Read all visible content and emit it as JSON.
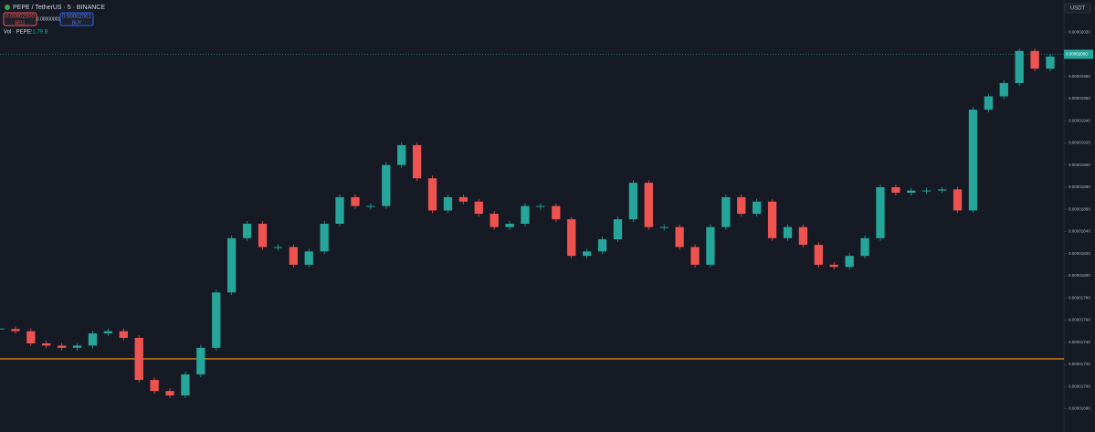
{
  "chart_data": {
    "type": "candlestick",
    "title": "PEPE / TetherUS · 5 · BINANCE",
    "currency": "USDT",
    "volume_label": "Vol · PEPE",
    "volume_value": "21.79 B",
    "sell_price": "0.00002000",
    "sell_label": "SELL",
    "spread": "0.00000001",
    "buy_price": "0.00002001",
    "buy_label": "BUY",
    "up_color": "#26a69a",
    "down_color": "#ef5350",
    "values": [
      1.752e-05,
      1.75e-05,
      1.739e-05,
      1.737e-05,
      1.735e-05,
      1.737e-05,
      1.748e-05,
      1.75e-05,
      1.744e-05,
      1.706e-05,
      1.696e-05,
      1.692e-05,
      1.711e-05,
      1.735e-05,
      1.785e-05,
      1.834e-05,
      1.847e-05,
      1.826e-05,
      1.826e-05,
      1.81e-05,
      1.822e-05,
      1.847e-05,
      1.871e-05,
      1.863e-05,
      1.863e-05,
      1.9e-05,
      1.918e-05,
      1.888e-05,
      1.859e-05,
      1.871e-05,
      1.867e-05,
      1.856e-05,
      1.844e-05,
      1.847e-05,
      1.863e-05,
      1.863e-05,
      1.851e-05,
      1.818e-05,
      1.822e-05,
      1.833e-05,
      1.851e-05,
      1.884e-05,
      1.844e-05,
      1.844e-05,
      1.826e-05,
      1.81e-05,
      1.844e-05,
      1.871e-05,
      1.856e-05,
      1.867e-05,
      1.834e-05,
      1.844e-05,
      1.828e-05,
      1.81e-05,
      1.808e-05,
      1.818e-05,
      1.834e-05,
      1.88e-05,
      1.875e-05,
      1.877e-05,
      1.877e-05,
      1.878e-05,
      1.859e-05,
      1.95e-05,
      1.962e-05,
      1.974e-05,
      2.003e-05,
      1.987e-05,
      1.998e-05
    ],
    "last_price": {
      "value": 2e-05,
      "label": "0.00002000"
    },
    "hline": 1.725e-05,
    "hline_color": "#f7931a",
    "ylim": [
      1.659e-05,
      2.049e-05
    ],
    "yticks": [
      {
        "value": 1.68e-05,
        "label": "0.00001680"
      },
      {
        "value": 1.7e-05,
        "label": "0.00001700"
      },
      {
        "value": 1.72e-05,
        "label": "0.00001720"
      },
      {
        "value": 1.74e-05,
        "label": "0.00001740"
      },
      {
        "value": 1.76e-05,
        "label": "0.00001760"
      },
      {
        "value": 1.78e-05,
        "label": "0.00001780"
      },
      {
        "value": 1.8e-05,
        "label": "0.00001800"
      },
      {
        "value": 1.82e-05,
        "label": "0.00001820"
      },
      {
        "value": 1.84e-05,
        "label": "0.00001840"
      },
      {
        "value": 1.86e-05,
        "label": "0.00001860"
      },
      {
        "value": 1.88e-05,
        "label": "0.00001880"
      },
      {
        "value": 1.9e-05,
        "label": "0.00001900"
      },
      {
        "value": 1.92e-05,
        "label": "0.00001920"
      },
      {
        "value": 1.94e-05,
        "label": "0.00001940"
      },
      {
        "value": 1.96e-05,
        "label": "0.00001960"
      },
      {
        "value": 1.98e-05,
        "label": "0.00001980"
      },
      {
        "value": 2e-05,
        "label": "0.00002000"
      },
      {
        "value": 2.02e-05,
        "label": "0.00002020"
      }
    ]
  }
}
